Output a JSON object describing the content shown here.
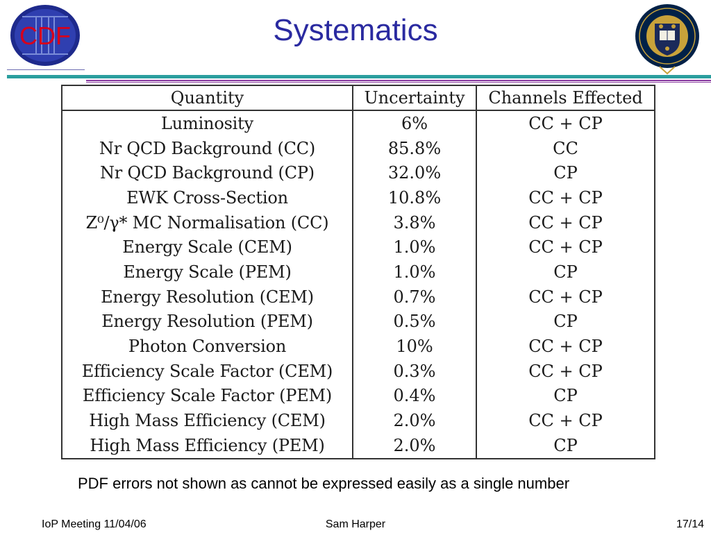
{
  "title": "Systematics",
  "logos": {
    "left": {
      "text": "CDF",
      "colors": {
        "ring": "#1e2a8c",
        "text": "#d6001c",
        "roman": "#7a8cd8"
      }
    },
    "right": {
      "text": "UNIVERSITY OF OXFORD",
      "colors": {
        "ring": "#002147",
        "gold": "#c8a23a",
        "shield": "#1b2a5a"
      }
    }
  },
  "colors": {
    "title": "#2a2aa0",
    "rule_teal": "#2a9e9e",
    "rule_purple": "#8a3aa0"
  },
  "table": {
    "headers": [
      "Quantity",
      "Uncertainty",
      "Channels Effected"
    ],
    "rows": [
      [
        "Luminosity",
        "6%",
        "CC + CP"
      ],
      [
        "Nr QCD Background (CC)",
        "85.8%",
        "CC"
      ],
      [
        "Nr QCD Background (CP)",
        "32.0%",
        "CP"
      ],
      [
        "EWK Cross-Section",
        "10.8%",
        "CC + CP"
      ],
      [
        "Z⁰/γ* MC Normalisation (CC)",
        "3.8%",
        "CC + CP"
      ],
      [
        "Energy Scale (CEM)",
        "1.0%",
        "CC + CP"
      ],
      [
        "Energy Scale (PEM)",
        "1.0%",
        "CP"
      ],
      [
        "Energy Resolution (CEM)",
        "0.7%",
        "CC + CP"
      ],
      [
        "Energy Resolution (PEM)",
        "0.5%",
        "CP"
      ],
      [
        "Photon Conversion",
        "10%",
        "CC + CP"
      ],
      [
        "Efficiency Scale Factor (CEM)",
        "0.3%",
        "CC + CP"
      ],
      [
        "Efficiency Scale Factor (PEM)",
        "0.4%",
        "CP"
      ],
      [
        "High Mass Efficiency (CEM)",
        "2.0%",
        "CC + CP"
      ],
      [
        "High Mass Efficiency (PEM)",
        "2.0%",
        "CP"
      ]
    ]
  },
  "note": "PDF errors not shown as cannot be expressed easily as a single number",
  "footer": {
    "left": "IoP Meeting 11/04/06",
    "center": "Sam Harper",
    "right": "17/14"
  }
}
